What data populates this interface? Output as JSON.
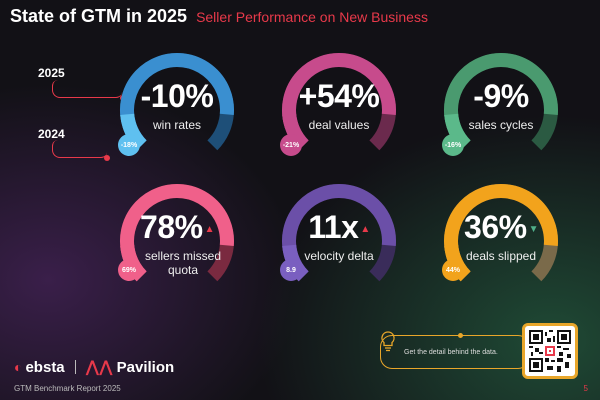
{
  "header": {
    "title": "State of GTM in 2025",
    "subtitle": "Seller Performance on New Business"
  },
  "legend": {
    "year_current": "2025",
    "year_previous": "2024"
  },
  "metrics": [
    {
      "value": "-10%",
      "label": "win rates",
      "prior": "-18%",
      "color": "#3a8fd0",
      "prior_color": "#5fc0f0",
      "track": "#1e4f78"
    },
    {
      "value": "+54%",
      "label": "deal values",
      "prior": "-21%",
      "color": "#c74b8c",
      "prior_color": "#c74b8c",
      "track": "#6b2a4d"
    },
    {
      "value": "-9%",
      "label": "sales cycles",
      "prior": "-16%",
      "color": "#4a9a6f",
      "prior_color": "#5bb98a",
      "track": "#2b5a42"
    },
    {
      "value": "78%",
      "label": "sellers missed quota",
      "prior": "69%",
      "color": "#f0608a",
      "prior_color": "#f0608a",
      "track": "#7a2a40",
      "trend": "up"
    },
    {
      "value": "11x",
      "label": "velocity delta",
      "prior": "8.9",
      "color": "#6b4fa8",
      "prior_color": "#7a5fc0",
      "track": "#3a2c5a",
      "trend": "up"
    },
    {
      "value": "36%",
      "label": "deals slipped",
      "prior": "44%",
      "color": "#f2a31c",
      "prior_color": "#f2a31c",
      "track": "#7a6a4a",
      "trend": "down"
    }
  ],
  "brands": {
    "ebsta": "ebsta",
    "pavilion": "Pavilion"
  },
  "footer": {
    "report": "GTM Benchmark Report 2025",
    "page": "5"
  },
  "cta": {
    "text": "Get the detail behind the data."
  },
  "colors": {
    "accent": "#e8394a",
    "cta": "#e8a62a",
    "up": "#e8394a",
    "down": "#4fb08a"
  }
}
